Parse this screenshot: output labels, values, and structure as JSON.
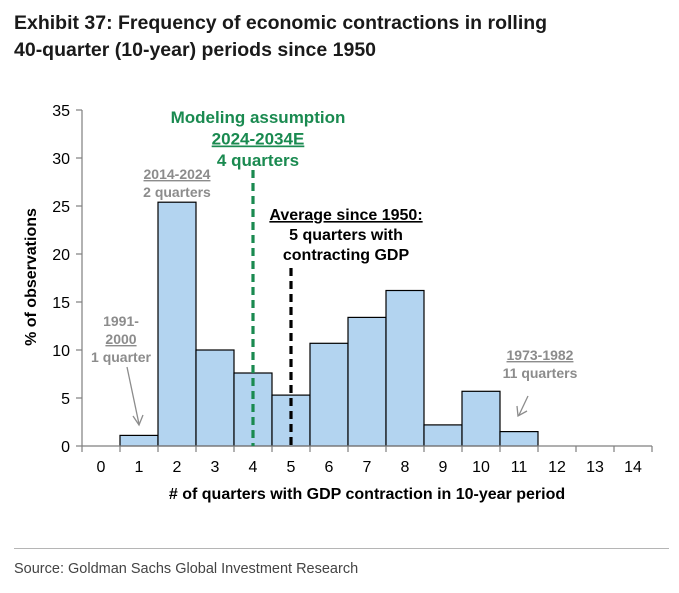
{
  "title": {
    "line1": "Exhibit 37: Frequency of economic contractions in rolling",
    "line2": "40-quarter (10-year) periods since 1950"
  },
  "source": "Source: Goldman Sachs Global Investment Research",
  "colors": {
    "bar_fill": "#b3d4f0",
    "bar_stroke": "#000000",
    "green": "#1a8a50",
    "gray_annotation": "#8c8c8c",
    "axis": "#7f7f7f"
  },
  "chart_data": {
    "type": "bar",
    "title": "",
    "xlabel": "# of quarters with GDP contraction in 10-year period",
    "ylabel": "% of observations",
    "xlim": [
      0,
      14
    ],
    "ylim": [
      0,
      35
    ],
    "yticks": [
      0,
      5,
      10,
      15,
      20,
      25,
      30,
      35
    ],
    "grid": false,
    "categories": [
      "0",
      "1",
      "2",
      "3",
      "4",
      "5",
      "6",
      "7",
      "8",
      "9",
      "10",
      "11",
      "12",
      "13",
      "14"
    ],
    "values": [
      0,
      1.1,
      25.4,
      10.0,
      7.6,
      5.3,
      10.7,
      13.4,
      16.2,
      2.2,
      5.7,
      1.5,
      0,
      0,
      0
    ],
    "annotations": [
      {
        "lines": [
          "Modeling assumption",
          "2024-2034E",
          "4 quarters"
        ],
        "x": 4,
        "color": "green"
      },
      {
        "lines": [
          "Average since 1950:",
          "5 quarters with",
          "contracting GDP"
        ],
        "x": 5,
        "color": "black"
      },
      {
        "lines": [
          "2014-2024",
          "2 quarters"
        ],
        "x": 2,
        "color": "gray"
      },
      {
        "lines": [
          "1991-",
          "2000",
          "1 quarter"
        ],
        "x": 1,
        "color": "gray"
      },
      {
        "lines": [
          "1973-1982",
          "11 quarters"
        ],
        "x": 11,
        "color": "gray"
      }
    ]
  }
}
